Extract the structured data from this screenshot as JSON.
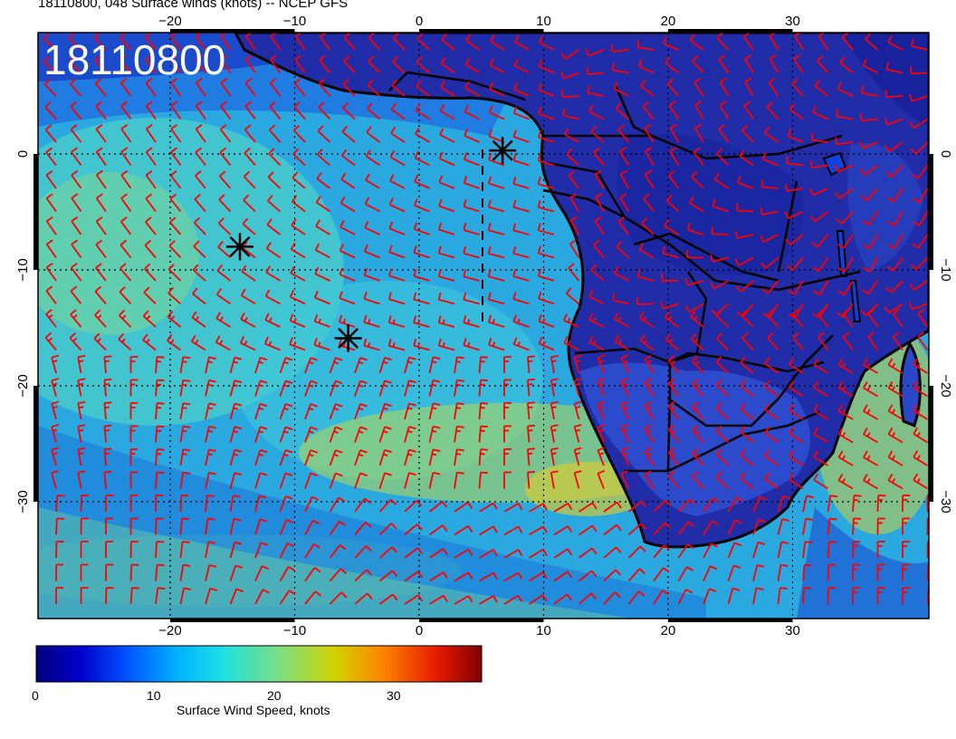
{
  "header": {
    "title": "18110800, 048 Surface winds (knots) -- NCEP GFS"
  },
  "map": {
    "stamp": "18110800",
    "x_ticks": [
      "−20",
      "−10",
      "0",
      "10",
      "20",
      "30"
    ],
    "y_ticks": [
      "0",
      "−10",
      "−20",
      "−30"
    ],
    "lon_range": [
      -30,
      41
    ],
    "lat_range": [
      -40,
      9
    ],
    "grid": true,
    "markers": [
      {
        "lon": 6.7,
        "lat": 0.3
      },
      {
        "lon": -14.4,
        "lat": -8.0
      },
      {
        "lon": -5.7,
        "lat": -15.9
      }
    ],
    "colors": {
      "barb": "#ff0000",
      "coast": "#000000"
    }
  },
  "colorbar": {
    "title": "Surface Wind Speed, knots",
    "tick_labels": [
      "0",
      "10",
      "20",
      "30"
    ],
    "range": [
      0,
      37
    ],
    "colors": [
      "#00007f",
      "#0000cc",
      "#0050ff",
      "#00b4ff",
      "#1ee1e1",
      "#7de07d",
      "#d2d200",
      "#ff8200",
      "#e61a00",
      "#7f0000"
    ]
  }
}
